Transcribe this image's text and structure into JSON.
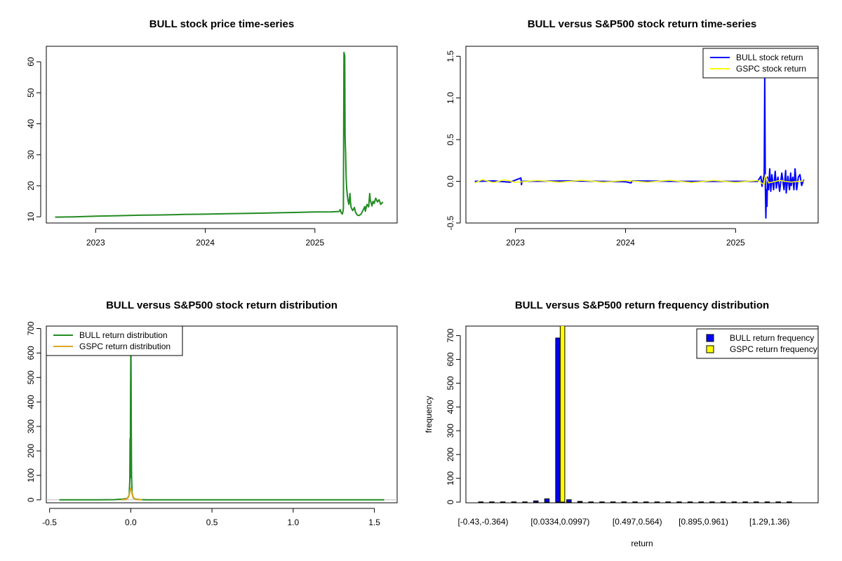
{
  "colors": {
    "price": "#228B22",
    "bull": "#0000FF",
    "gspc": "#FFFF00",
    "gspc_density": "#DAA520",
    "bull_density": "#228B22",
    "axis": "#000000",
    "zero_line": "#BEBEBE"
  },
  "chart_data": [
    {
      "id": "price",
      "type": "line",
      "title": "BULL stock price time-series",
      "xlabel": "",
      "ylabel": "",
      "xlim": [
        2022.55,
        2025.75
      ],
      "ylim": [
        8,
        65
      ],
      "x_ticks": [
        2023,
        2024,
        2025
      ],
      "x_tick_labels": [
        "2023",
        "2024",
        "2025"
      ],
      "y_ticks": [
        10,
        20,
        30,
        40,
        50,
        60
      ],
      "y_tick_labels": [
        "10",
        "20",
        "30",
        "40",
        "50",
        "60"
      ],
      "grid": false,
      "series": [
        {
          "color_key": "price",
          "points": [
            [
              2022.63,
              9.9
            ],
            [
              2022.8,
              10.0
            ],
            [
              2023.0,
              10.2
            ],
            [
              2023.2,
              10.35
            ],
            [
              2023.4,
              10.5
            ],
            [
              2023.6,
              10.6
            ],
            [
              2023.8,
              10.75
            ],
            [
              2024.0,
              10.85
            ],
            [
              2024.2,
              11.0
            ],
            [
              2024.4,
              11.1
            ],
            [
              2024.6,
              11.25
            ],
            [
              2024.8,
              11.4
            ],
            [
              2025.0,
              11.55
            ],
            [
              2025.15,
              11.6
            ],
            [
              2025.22,
              11.7
            ],
            [
              2025.23,
              12.3
            ],
            [
              2025.24,
              11.3
            ],
            [
              2025.25,
              10.9
            ],
            [
              2025.255,
              11.6
            ],
            [
              2025.26,
              12.8
            ],
            [
              2025.265,
              63.0
            ],
            [
              2025.272,
              62.0
            ],
            [
              2025.275,
              36.0
            ],
            [
              2025.28,
              30.0
            ],
            [
              2025.285,
              23.0
            ],
            [
              2025.29,
              19.0
            ],
            [
              2025.3,
              15.5
            ],
            [
              2025.31,
              14.0
            ],
            [
              2025.32,
              17.5
            ],
            [
              2025.325,
              14.5
            ],
            [
              2025.33,
              13.0
            ],
            [
              2025.345,
              12.0
            ],
            [
              2025.36,
              13.0
            ],
            [
              2025.37,
              11.5
            ],
            [
              2025.385,
              10.6
            ],
            [
              2025.4,
              10.4
            ],
            [
              2025.42,
              10.8
            ],
            [
              2025.44,
              12.2
            ],
            [
              2025.455,
              13.3
            ],
            [
              2025.46,
              11.8
            ],
            [
              2025.475,
              14.0
            ],
            [
              2025.49,
              13.2
            ],
            [
              2025.5,
              17.5
            ],
            [
              2025.505,
              15.5
            ],
            [
              2025.52,
              13.5
            ],
            [
              2025.53,
              15.0
            ],
            [
              2025.54,
              14.3
            ],
            [
              2025.555,
              16.0
            ],
            [
              2025.57,
              14.8
            ],
            [
              2025.585,
              15.5
            ],
            [
              2025.6,
              14.0
            ],
            [
              2025.62,
              14.8
            ]
          ]
        }
      ]
    },
    {
      "id": "returns",
      "type": "line",
      "title": "BULL versus S&P500 stock return time-series",
      "xlabel": "",
      "ylabel": "",
      "xlim": [
        2022.55,
        2025.75
      ],
      "ylim": [
        -0.5,
        1.62
      ],
      "x_ticks": [
        2023,
        2024,
        2025
      ],
      "x_tick_labels": [
        "2023",
        "2024",
        "2025"
      ],
      "y_ticks": [
        -0.5,
        0.0,
        0.5,
        1.0,
        1.5
      ],
      "y_tick_labels": [
        "-0.5",
        "0.0",
        "0.5",
        "1.0",
        "1.5"
      ],
      "grid": false,
      "legend_position": "top-right",
      "series": [
        {
          "name": "BULL stock return",
          "color_key": "bull",
          "points": [
            [
              2022.63,
              0.0
            ],
            [
              2022.8,
              0.005
            ],
            [
              2022.95,
              -0.01
            ],
            [
              2023.05,
              0.04
            ],
            [
              2023.055,
              -0.04
            ],
            [
              2023.06,
              0.0
            ],
            [
              2023.5,
              0.005
            ],
            [
              2024.0,
              -0.005
            ],
            [
              2024.05,
              -0.02
            ],
            [
              2024.06,
              0.005
            ],
            [
              2024.5,
              0.0
            ],
            [
              2025.0,
              0.0
            ],
            [
              2025.2,
              0.0
            ],
            [
              2025.23,
              0.06
            ],
            [
              2025.24,
              -0.06
            ],
            [
              2025.26,
              0.08
            ],
            [
              2025.265,
              1.25
            ],
            [
              2025.27,
              -0.02
            ],
            [
              2025.275,
              -0.44
            ],
            [
              2025.28,
              -0.1
            ],
            [
              2025.285,
              -0.3
            ],
            [
              2025.29,
              0.05
            ],
            [
              2025.3,
              -0.1
            ],
            [
              2025.31,
              0.15
            ],
            [
              2025.32,
              -0.12
            ],
            [
              2025.33,
              0.08
            ],
            [
              2025.345,
              -0.1
            ],
            [
              2025.36,
              0.12
            ],
            [
              2025.37,
              -0.08
            ],
            [
              2025.385,
              0.05
            ],
            [
              2025.4,
              -0.12
            ],
            [
              2025.42,
              0.1
            ],
            [
              2025.44,
              -0.1
            ],
            [
              2025.455,
              0.13
            ],
            [
              2025.46,
              -0.14
            ],
            [
              2025.475,
              0.06
            ],
            [
              2025.49,
              -0.1
            ],
            [
              2025.5,
              0.1
            ],
            [
              2025.505,
              -0.05
            ],
            [
              2025.52,
              0.05
            ],
            [
              2025.53,
              -0.1
            ],
            [
              2025.54,
              0.15
            ],
            [
              2025.555,
              -0.1
            ],
            [
              2025.57,
              0.05
            ],
            [
              2025.585,
              0.08
            ],
            [
              2025.6,
              -0.05
            ],
            [
              2025.62,
              0.02
            ]
          ]
        },
        {
          "name": "GSPC stock return",
          "color_key": "gspc",
          "points": [
            [
              2022.63,
              -0.02
            ],
            [
              2022.7,
              0.02
            ],
            [
              2022.8,
              -0.015
            ],
            [
              2022.9,
              0.018
            ],
            [
              2023.0,
              -0.012
            ],
            [
              2023.2,
              0.01
            ],
            [
              2023.4,
              -0.01
            ],
            [
              2023.6,
              0.012
            ],
            [
              2023.8,
              -0.01
            ],
            [
              2024.0,
              0.01
            ],
            [
              2024.2,
              -0.01
            ],
            [
              2024.4,
              0.012
            ],
            [
              2024.6,
              -0.015
            ],
            [
              2024.8,
              0.01
            ],
            [
              2025.0,
              -0.012
            ],
            [
              2025.2,
              0.01
            ],
            [
              2025.26,
              -0.04
            ],
            [
              2025.27,
              0.08
            ],
            [
              2025.3,
              -0.02
            ],
            [
              2025.4,
              0.01
            ],
            [
              2025.5,
              -0.01
            ],
            [
              2025.62,
              0.005
            ]
          ]
        }
      ]
    },
    {
      "id": "density",
      "type": "line",
      "title": "BULL versus S&P500 stock return distribution",
      "xlabel": "",
      "ylabel": "",
      "xlim": [
        -0.52,
        1.64
      ],
      "ylim": [
        -12,
        710
      ],
      "x_ticks": [
        -0.5,
        0.0,
        0.5,
        1.0,
        1.5
      ],
      "x_tick_labels": [
        "-0.5",
        "0.0",
        "0.5",
        "1.0",
        "1.5"
      ],
      "y_ticks": [
        0,
        100,
        200,
        300,
        400,
        500,
        600,
        700
      ],
      "y_tick_labels": [
        "0",
        "100",
        "200",
        "300",
        "400",
        "500",
        "600",
        "700"
      ],
      "grid": false,
      "legend_position": "top-left",
      "series": [
        {
          "name": "BULL return distribution",
          "color_key": "bull_density",
          "points": [
            [
              -0.44,
              0
            ],
            [
              -0.2,
              0
            ],
            [
              -0.1,
              1
            ],
            [
              -0.05,
              3
            ],
            [
              -0.02,
              6
            ],
            [
              -0.01,
              20
            ],
            [
              -0.006,
              80
            ],
            [
              -0.004,
              250
            ],
            [
              -0.003,
              90
            ],
            [
              -0.002,
              300
            ],
            [
              -0.001,
              450
            ],
            [
              0.0,
              590
            ],
            [
              0.001,
              640
            ],
            [
              0.002,
              520
            ],
            [
              0.003,
              300
            ],
            [
              0.005,
              100
            ],
            [
              0.008,
              30
            ],
            [
              0.015,
              8
            ],
            [
              0.03,
              3
            ],
            [
              0.06,
              1
            ],
            [
              0.1,
              0
            ],
            [
              0.2,
              0
            ],
            [
              0.5,
              0
            ],
            [
              1.0,
              0
            ],
            [
              1.56,
              0
            ]
          ]
        },
        {
          "name": "GSPC return distribution",
          "color_key": "gspc_density",
          "points": [
            [
              -0.06,
              0
            ],
            [
              -0.03,
              2
            ],
            [
              -0.015,
              10
            ],
            [
              -0.008,
              25
            ],
            [
              -0.004,
              38
            ],
            [
              0.0,
              48
            ],
            [
              0.004,
              38
            ],
            [
              0.008,
              25
            ],
            [
              0.015,
              10
            ],
            [
              0.03,
              2
            ],
            [
              0.07,
              0
            ]
          ]
        }
      ]
    },
    {
      "id": "frequency",
      "type": "bar",
      "title": "BULL versus S&P500 return frequency distribution",
      "xlabel": "return",
      "ylabel": "frequency",
      "ylim": [
        0,
        740
      ],
      "y_ticks": [
        0,
        100,
        200,
        300,
        400,
        500,
        600,
        700
      ],
      "y_tick_labels": [
        "0",
        "100",
        "200",
        "300",
        "400",
        "500",
        "600",
        "700"
      ],
      "grid": false,
      "legend_position": "top-right",
      "categories": [
        "[-0.43,-0.364)",
        "",
        "",
        "",
        "",
        "",
        "",
        "[0.0334,0.0997)",
        "",
        "",
        "",
        "",
        "",
        "",
        "[0.497,0.564)",
        "",
        "",
        "",
        "",
        "",
        "[0.895,0.961)",
        "",
        "",
        "",
        "",
        "",
        "[1.29,1.36)",
        "",
        ""
      ],
      "series": [
        {
          "name": "BULL return frequency",
          "color_key": "bull",
          "values": [
            1,
            1,
            1,
            1,
            1,
            5,
            14,
            690,
            10,
            3,
            1,
            1,
            1,
            1,
            1,
            1,
            1,
            1,
            1,
            1,
            1,
            1,
            1,
            1,
            1,
            1,
            1,
            1,
            1
          ]
        },
        {
          "name": "GSPC return frequency",
          "color_key": "gspc",
          "values": [
            0,
            0,
            0,
            0,
            0,
            0,
            0,
            760,
            0,
            0,
            0,
            0,
            0,
            0,
            0,
            0,
            0,
            0,
            0,
            0,
            0,
            0,
            0,
            0,
            0,
            0,
            0,
            0,
            0
          ]
        }
      ]
    }
  ]
}
